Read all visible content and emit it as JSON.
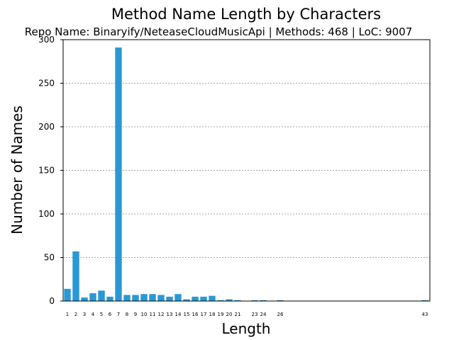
{
  "chart_data": {
    "type": "bar",
    "title": "Method Name Length by Characters",
    "subtitle": "Repo Name: Binaryify/NeteaseCloudMusicApi | Methods: 468 | LoC: 9007",
    "xlabel": "Length",
    "ylabel": "Number of Names",
    "ylim": [
      0,
      300
    ],
    "yticks": [
      0,
      50,
      100,
      150,
      200,
      250,
      300
    ],
    "xlim": [
      1,
      43
    ],
    "grid": true,
    "bar_color": "#2a98d6",
    "categories": [
      "1",
      "2",
      "3",
      "4",
      "5",
      "6",
      "7",
      "8",
      "9",
      "10",
      "11",
      "12",
      "13",
      "14",
      "15",
      "16",
      "17",
      "18",
      "19",
      "20",
      "21",
      "23",
      "24",
      "26",
      "43"
    ],
    "values": [
      14,
      57,
      4,
      9,
      12,
      5,
      291,
      7,
      7,
      8,
      8,
      7,
      5,
      8,
      2,
      5,
      5,
      6,
      1,
      2,
      1,
      1,
      1,
      1,
      1
    ]
  }
}
